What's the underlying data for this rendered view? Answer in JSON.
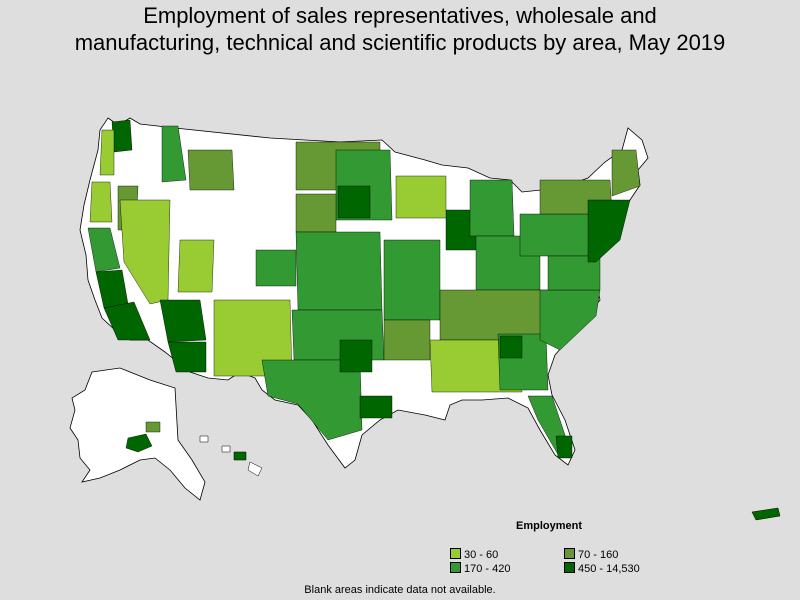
{
  "title": {
    "line1": "Employment of sales representatives, wholesale and",
    "line2": "manufacturing, technical and scientific products by area, May 2019"
  },
  "legend": {
    "heading": "Employment",
    "items": [
      {
        "label": "30 - 60",
        "color": "#99cc33"
      },
      {
        "label": "70 - 160",
        "color": "#669933"
      },
      {
        "label": "170 - 420",
        "color": "#339933"
      },
      {
        "label": "450 - 14,530",
        "color": "#006600"
      }
    ]
  },
  "footnote": "Blank areas indicate data not available.",
  "colors": {
    "background": "#dedede",
    "no_data": "#ffffff",
    "border": "#000000"
  }
}
